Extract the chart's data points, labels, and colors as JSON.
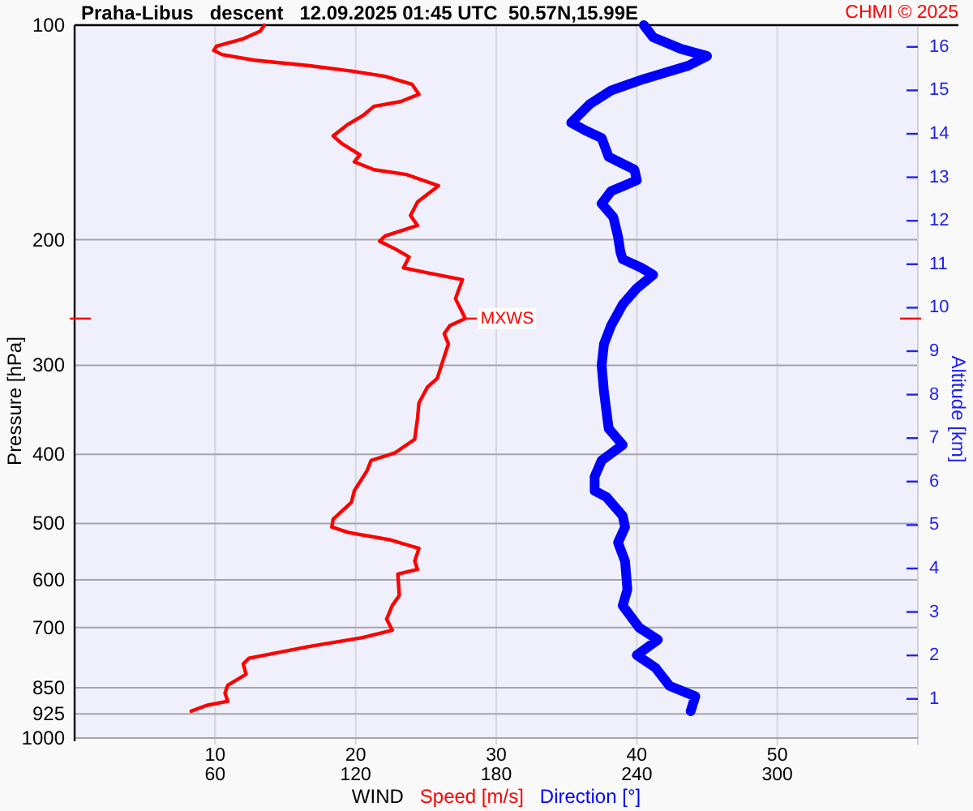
{
  "chart_data": {
    "type": "line",
    "orientation": "horizontal",
    "title": "Praha-Libus   descent   12.09.2025 01:45 UTC  50.57N,15.99E",
    "xlabel": "WIND",
    "ylabel": "Pressure [hPa]",
    "y2label": "Altitude [km]",
    "annotations": [
      "CHMI © 2025",
      {
        "text": "MXWS",
        "x": 27.8,
        "y": 258
      }
    ],
    "xlim": [
      0,
      60
    ],
    "xticks": [
      10,
      20,
      30,
      40,
      50
    ],
    "x2lim": [
      0,
      360
    ],
    "x2ticks": [
      60,
      120,
      180,
      240,
      300
    ],
    "ylim": [
      1000,
      100
    ],
    "yticks": [
      100,
      200,
      300,
      400,
      500,
      600,
      700,
      850,
      925,
      1000
    ],
    "log": "y",
    "y2lim": [
      0.1,
      16.5
    ],
    "y2ticks": [
      1,
      2,
      3,
      4,
      5,
      6,
      7,
      8,
      9,
      10,
      11,
      12,
      13,
      14,
      15,
      16
    ],
    "grid": true,
    "legend": "bottom",
    "series": [
      {
        "name": "Speed [m/s]",
        "color": "#ff0000",
        "x": [
          100,
          102,
          104.5,
          107,
          108.5,
          110,
          112,
          114,
          116,
          118,
          121,
          125,
          128,
          130,
          134,
          138,
          143,
          146.5,
          152,
          155.5,
          159.5,
          162,
          168,
          177,
          185,
          191,
          197.5,
          201,
          206,
          211.5,
          219,
          222.5,
          227.5,
          236,
          242,
          258,
          264,
          271,
          280,
          300,
          313,
          322,
          339,
          356,
          381,
          398,
          408,
          422,
          450,
          467,
          493,
          506,
          515,
          527,
          542,
          565,
          580,
          589,
          631,
          652,
          681,
          706,
          723,
          744,
          773,
          787,
          814,
          843,
          865,
          888,
          900,
          917
        ],
        "values": [
          13.5,
          13.2,
          12.0,
          10.1,
          9.9,
          10.5,
          12.8,
          16.7,
          19.7,
          22.1,
          24.0,
          24.5,
          23.2,
          21.3,
          20.5,
          19.4,
          18.4,
          19.0,
          20.3,
          19.9,
          21.3,
          23.6,
          25.9,
          24.4,
          23.9,
          24.4,
          22.1,
          21.7,
          22.8,
          23.8,
          23.4,
          25.1,
          27.6,
          27.3,
          27.1,
          27.8,
          26.7,
          26.3,
          26.6,
          26.1,
          25.8,
          25.1,
          24.5,
          24.4,
          24.2,
          22.8,
          21.1,
          20.8,
          19.9,
          19.7,
          18.4,
          18.3,
          19.5,
          22.4,
          24.5,
          24.2,
          24.4,
          23.0,
          23.1,
          22.6,
          22.2,
          22.6,
          20.5,
          16.7,
          12.4,
          12.0,
          12.2,
          10.9,
          10.7,
          10.9,
          9.4,
          8.3
        ]
      },
      {
        "name": "Direction [°]",
        "color": "#0000ff",
        "axis": "x2",
        "x": [
          100,
          104,
          108,
          110.5,
          114,
          119,
          123.5,
          129,
          137,
          140.5,
          144,
          153,
          159.5,
          165,
          171,
          178,
          186,
          198,
          208,
          213,
          219,
          224,
          234,
          246.5,
          264,
          280,
          300,
          327,
          368,
          388,
          408,
          430,
          450,
          459,
          488,
          506,
          532,
          565,
          619,
          652,
          700,
          728,
          765,
          797,
          845,
          874,
          917
        ],
        "values": [
          243,
          247,
          259,
          270,
          262,
          243,
          229,
          220,
          212,
          218,
          225,
          228,
          239,
          240,
          229,
          225,
          230,
          232,
          233,
          234,
          242,
          247,
          240,
          234,
          229,
          226,
          225,
          226,
          228,
          234,
          225,
          222,
          222,
          227,
          234,
          235,
          232,
          235,
          236,
          234,
          241,
          249,
          240,
          248,
          254,
          265,
          263
        ]
      }
    ]
  }
}
